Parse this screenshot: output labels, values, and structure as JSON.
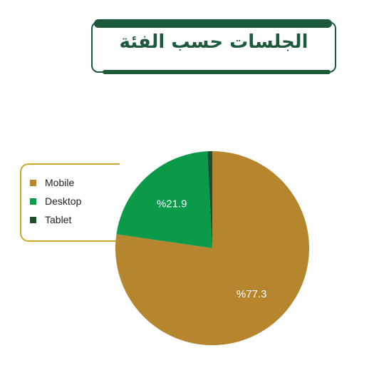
{
  "title": "الجلسات حسب الفئة",
  "colors": {
    "accent": "#1d5a3b",
    "legend_border": "#d4a52c"
  },
  "chart_data": {
    "type": "pie",
    "title": "الجلسات حسب الفئة",
    "categories": [
      "Mobile",
      "Desktop",
      "Tablet"
    ],
    "values": [
      77.3,
      21.9,
      0.8
    ],
    "labels": [
      "%77.3",
      "%21.9",
      ""
    ],
    "colors": [
      "#b5862d",
      "#0a9a4a",
      "#1b4d2e"
    ],
    "legend_position": "left"
  }
}
